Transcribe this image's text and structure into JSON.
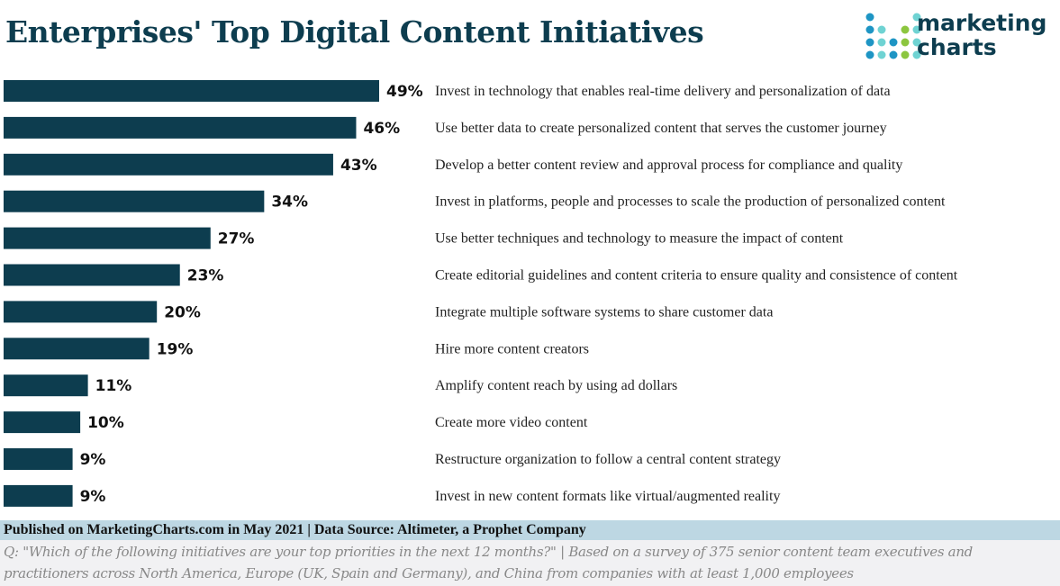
{
  "title": "Enterprises' Top Digital Content Initiatives",
  "logo": {
    "line1": "marketing",
    "line2": "charts",
    "colors": {
      "blue": "#1e95c4",
      "teal": "#6fd3d3",
      "green": "#8cc63f",
      "text": "#0d3d4f"
    }
  },
  "chart_data": {
    "type": "bar",
    "orientation": "horizontal",
    "title": "Enterprises' Top Digital Content Initiatives",
    "bar_color": "#0d3d4f",
    "categories": [
      "Invest in technology that enables real-time delivery and personalization of data",
      "Use better data to create personalized content that serves the customer journey",
      "Develop a better content review and approval process for compliance and quality",
      "Invest in platforms, people and processes to scale the production of personalized content",
      "Use better techniques and technology to measure the impact of content",
      "Create editorial guidelines and content criteria to ensure quality and consistence of content",
      "Integrate multiple software systems to share customer data",
      "Hire more content creators",
      "Amplify content reach by using ad dollars",
      "Create more video content",
      "Restructure organization to follow a central content strategy",
      "Invest in new content formats like virtual/augmented reality"
    ],
    "values": [
      49,
      46,
      43,
      34,
      27,
      23,
      20,
      19,
      11,
      10,
      9,
      9
    ],
    "value_labels": [
      "49%",
      "46%",
      "43%",
      "34%",
      "27%",
      "23%",
      "20%",
      "19%",
      "11%",
      "10%",
      "9%",
      "9%"
    ],
    "xlim": [
      0,
      49
    ],
    "grid": false
  },
  "footer": {
    "published": "Published on MarketingCharts.com in May 2021 | Data Source: Altimeter, a Prophet Company",
    "note_line1": "Q: \"Which of the following initiatives are your top priorities in the next 12 months?\" | Based on a survey of 375 senior content team executives and",
    "note_line2": "practitioners across North America, Europe (UK, Spain and Germany), and China from companies with at least 1,000 employees"
  }
}
